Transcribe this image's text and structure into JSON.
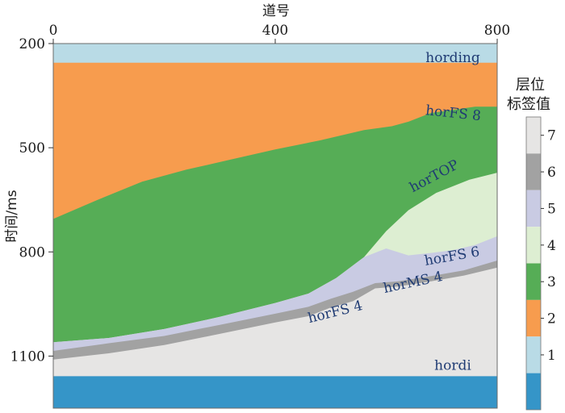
{
  "chart_data": {
    "type": "area",
    "xlabel": "道号",
    "ylabel": "时间/ms",
    "xlim": [
      0,
      800
    ],
    "ylim": [
      200,
      1250
    ],
    "y_inverted": true,
    "x_ticks": [
      "0",
      "400",
      "800"
    ],
    "y_ticks": [
      "200",
      "500",
      "800",
      "1100"
    ],
    "colors": {
      "1": "#b9dbe6",
      "2": "#f79c4e",
      "3": "#56ad56",
      "4": "#ddeed2",
      "5": "#c9cbe3",
      "6": "#a2a2a2",
      "7": "#e6e5e4",
      "base": "#3595c8",
      "label": "#1f3b73"
    },
    "horizons": [
      {
        "name": "hording",
        "label_pos": [
          720,
          254
        ],
        "points": [
          [
            0,
            255
          ],
          [
            800,
            255
          ]
        ]
      },
      {
        "name": "horFS 8",
        "label_pos": [
          720,
          413
        ],
        "points": [
          [
            0,
            705
          ],
          [
            80,
            650
          ],
          [
            160,
            598
          ],
          [
            240,
            563
          ],
          [
            320,
            534
          ],
          [
            400,
            505
          ],
          [
            480,
            479
          ],
          [
            560,
            449
          ],
          [
            610,
            438
          ],
          [
            640,
            425
          ],
          [
            680,
            400
          ],
          [
            760,
            382
          ],
          [
            800,
            382
          ]
        ]
      },
      {
        "name": "horTOP",
        "label_pos": [
          690,
          593
        ],
        "points": [
          [
            0,
            1060
          ],
          [
            100,
            1048
          ],
          [
            200,
            1022
          ],
          [
            300,
            987
          ],
          [
            400,
            947
          ],
          [
            460,
            920
          ],
          [
            510,
            875
          ],
          [
            560,
            815
          ],
          [
            600,
            740
          ],
          [
            640,
            680
          ],
          [
            690,
            630
          ],
          [
            750,
            592
          ],
          [
            800,
            572
          ]
        ]
      },
      {
        "name": "horFS 6",
        "label_pos": [
          720,
          825
        ],
        "points": [
          [
            0,
            1060
          ],
          [
            100,
            1048
          ],
          [
            200,
            1022
          ],
          [
            300,
            987
          ],
          [
            400,
            947
          ],
          [
            460,
            920
          ],
          [
            510,
            875
          ],
          [
            560,
            815
          ],
          [
            600,
            790
          ],
          [
            640,
            810
          ],
          [
            680,
            803
          ],
          [
            720,
            795
          ],
          [
            760,
            780
          ],
          [
            800,
            755
          ]
        ]
      },
      {
        "name": "horMS 4",
        "label_pos": [
          650,
          900
        ],
        "points": [
          [
            0,
            1085
          ],
          [
            100,
            1063
          ],
          [
            200,
            1042
          ],
          [
            300,
            1010
          ],
          [
            400,
            978
          ],
          [
            460,
            958
          ],
          [
            500,
            935
          ],
          [
            540,
            915
          ],
          [
            580,
            890
          ],
          [
            620,
            885
          ],
          [
            680,
            870
          ],
          [
            740,
            853
          ],
          [
            800,
            825
          ]
        ]
      },
      {
        "name": "horFS 4",
        "label_pos": [
          510,
          985
        ],
        "points": [
          [
            0,
            1110
          ],
          [
            100,
            1092
          ],
          [
            200,
            1068
          ],
          [
            300,
            1036
          ],
          [
            400,
            1003
          ],
          [
            460,
            985
          ],
          [
            500,
            960
          ],
          [
            540,
            942
          ],
          [
            580,
            905
          ],
          [
            620,
            900
          ],
          [
            680,
            885
          ],
          [
            740,
            868
          ],
          [
            800,
            845
          ]
        ]
      },
      {
        "name": "hordi",
        "label_pos": [
          720,
          1140
        ],
        "points": [
          [
            0,
            1158
          ],
          [
            800,
            1158
          ]
        ]
      }
    ],
    "legend": {
      "title_line1": "层位",
      "title_line2": "标签值",
      "ticks": [
        "7",
        "6",
        "5",
        "4",
        "3",
        "2",
        "1"
      ],
      "placement": "right"
    }
  }
}
